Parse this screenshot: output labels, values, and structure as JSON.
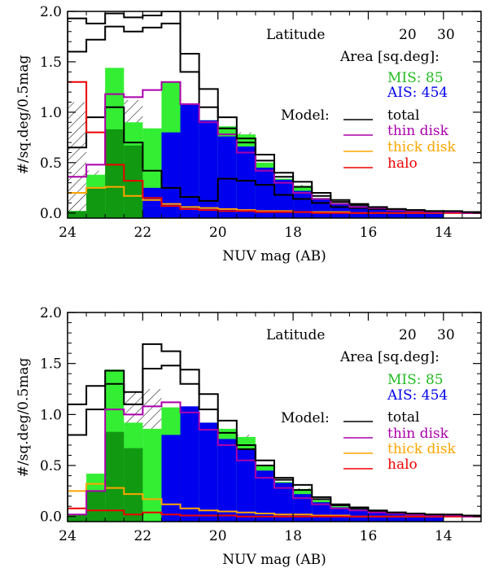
{
  "colors": {
    "mis": "#33ee33",
    "mis_dark": "#119911",
    "ais": "#0000ee",
    "total": "#000000",
    "thin": "#aa00aa",
    "thick": "#ffa500",
    "halo": "#ee0000",
    "hatch": "#000000"
  },
  "labels": {
    "latitude": "Latitude",
    "lat_low": "20",
    "lat_high": "30",
    "area": "Area [sq.deg]:",
    "mis": "MIS:  85",
    "ais": "AIS: 454",
    "model": "Model:",
    "total": "total",
    "thin": "thin disk",
    "thick": "thick disk",
    "halo": "halo"
  },
  "chart_data": [
    {
      "type": "histogram",
      "xlabel": "NUV mag (AB)",
      "ylabel": "#/sq.deg/0.5mag",
      "xlim": [
        24,
        13
      ],
      "ylim": [
        -0.05,
        2.0
      ],
      "xticks": [
        24,
        22,
        20,
        18,
        16,
        14
      ],
      "yticks": [
        0.0,
        0.5,
        1.0,
        1.5,
        2.0
      ],
      "ytick_labels": [
        "0.0",
        "0.5",
        "1.0",
        "1.5",
        "2.0"
      ],
      "bin_edges": [
        24.0,
        23.5,
        23.0,
        22.5,
        22.0,
        21.5,
        21.0,
        20.5,
        20.0,
        19.5,
        19.0,
        18.5,
        18.0,
        17.5,
        17.0,
        16.5,
        16.0,
        15.5,
        15.0,
        14.5,
        14.0,
        13.5,
        13.0
      ],
      "series": [
        {
          "name": "MIS",
          "style": "fill",
          "values": [
            0.02,
            0.38,
            1.44,
            0.9,
            0.84,
            1.3,
            1.06,
            0.92,
            0.86,
            0.78,
            0.5,
            0.34,
            0.27,
            0.15,
            0.1,
            0.08,
            0.06,
            0.03,
            0.02,
            0.02,
            0.0,
            0.0
          ]
        },
        {
          "name": "MIS (darker)",
          "style": "fill",
          "values": [
            0.02,
            0.25,
            0.83,
            0.67,
            0.0,
            0.0,
            0.0,
            0.0,
            0.0,
            0.0,
            0.0,
            0.0,
            0.0,
            0.0,
            0.0,
            0.0,
            0.0,
            0.0,
            0.0,
            0.0,
            0.0,
            0.0
          ]
        },
        {
          "name": "AIS",
          "style": "fill",
          "values": [
            0.0,
            0.0,
            0.0,
            0.0,
            0.25,
            0.8,
            1.08,
            0.92,
            0.76,
            0.66,
            0.45,
            0.33,
            0.22,
            0.14,
            0.09,
            0.07,
            0.05,
            0.03,
            0.02,
            0.01,
            0.0,
            0.0
          ]
        },
        {
          "name": "total",
          "values": [
            1.93,
            1.88,
            1.98,
            1.94,
            1.96,
            2.12,
            1.58,
            1.23,
            0.95,
            0.74,
            0.58,
            0.4,
            0.31,
            0.2,
            0.13,
            0.09,
            0.06,
            0.04,
            0.03,
            0.02,
            0.02,
            0.01
          ]
        },
        {
          "name": "thin disk",
          "values": [
            0.36,
            0.48,
            1.18,
            1.15,
            1.22,
            1.3,
            1.08,
            0.9,
            0.78,
            0.6,
            0.42,
            0.3,
            0.2,
            0.14,
            0.09,
            0.06,
            0.05,
            0.03,
            0.02,
            0.01,
            0.01,
            0.0
          ]
        },
        {
          "name": "thick disk",
          "values": [
            0.2,
            0.25,
            0.26,
            0.17,
            0.13,
            0.09,
            0.06,
            0.05,
            0.04,
            0.03,
            0.02,
            0.02,
            0.01,
            0.01,
            0.01,
            0.0,
            0.0,
            0.0,
            0.0,
            0.0,
            0.0,
            0.0
          ]
        },
        {
          "name": "halo",
          "values": [
            1.3,
            0.8,
            0.48,
            0.32,
            0.15,
            0.07,
            0.04,
            0.03,
            0.02,
            0.02,
            0.01,
            0.01,
            0.01,
            0.0,
            0.0,
            0.0,
            0.0,
            0.0,
            0.0,
            0.0,
            0.0,
            0.0
          ]
        }
      ],
      "extra_total_lines": [
        {
          "values": [
            1.6,
            1.72,
            1.85,
            1.8,
            1.84,
            1.88,
            1.4,
            1.05,
            0.84,
            0.7,
            0.52,
            0.36,
            0.26,
            0.17,
            0.11,
            0.08,
            0.05,
            0.04,
            0.03,
            0.02,
            0.01,
            0.01
          ]
        },
        {
          "values": [
            0.65,
            0.95,
            1.05,
            0.7,
            0.42,
            0.25,
            0.16,
            0.12,
            0.34,
            0.32,
            0.28,
            0.18,
            0.14,
            0.1,
            0.06,
            0.05,
            0.04,
            0.03,
            0.02,
            0.01,
            0.01,
            0.0
          ]
        }
      ],
      "hatched_top": [
        1.1,
        0.42,
        1.44,
        1.12,
        0.84,
        1.3,
        1.06,
        0.92,
        0.86,
        0.8,
        0.5,
        0.34,
        0.28,
        0.15,
        0.1,
        0.08,
        0.06,
        0.03,
        0.02,
        0.02,
        0.0,
        0.0
      ]
    },
    {
      "type": "histogram",
      "xlabel": "NUV mag (AB)",
      "ylabel": "#/sq.deg/0.5mag",
      "xlim": [
        24,
        13
      ],
      "ylim": [
        -0.05,
        2.0
      ],
      "xticks": [
        24,
        22,
        20,
        18,
        16,
        14
      ],
      "yticks": [
        0.0,
        0.5,
        1.0,
        1.5,
        2.0
      ],
      "ytick_labels": [
        "0.0",
        "0.5",
        "1.0",
        "1.5",
        "2.0"
      ],
      "bin_edges": [
        24.0,
        23.5,
        23.0,
        22.5,
        22.0,
        21.5,
        21.0,
        20.5,
        20.0,
        19.5,
        19.0,
        18.5,
        18.0,
        17.5,
        17.0,
        16.5,
        16.0,
        15.5,
        15.0,
        14.5,
        14.0,
        13.5,
        13.0
      ],
      "series": [
        {
          "name": "MIS",
          "style": "fill",
          "values": [
            0.02,
            0.42,
            1.44,
            0.92,
            0.86,
            1.07,
            1.06,
            0.92,
            0.86,
            0.78,
            0.5,
            0.34,
            0.27,
            0.16,
            0.1,
            0.08,
            0.06,
            0.03,
            0.02,
            0.02,
            0.0,
            0.0
          ]
        },
        {
          "name": "MIS (darker)",
          "style": "fill",
          "values": [
            0.02,
            0.25,
            0.83,
            0.67,
            0.0,
            0.0,
            0.0,
            0.0,
            0.0,
            0.0,
            0.0,
            0.0,
            0.0,
            0.0,
            0.0,
            0.0,
            0.0,
            0.0,
            0.0,
            0.0,
            0.0,
            0.0
          ]
        },
        {
          "name": "AIS",
          "style": "fill",
          "values": [
            0.0,
            0.0,
            0.0,
            0.0,
            0.0,
            0.8,
            1.08,
            0.92,
            0.76,
            0.66,
            0.45,
            0.33,
            0.22,
            0.14,
            0.09,
            0.07,
            0.05,
            0.03,
            0.02,
            0.01,
            0.0,
            0.0
          ]
        },
        {
          "name": "total",
          "values": [
            1.1,
            1.28,
            1.43,
            1.22,
            1.69,
            1.62,
            1.44,
            1.2,
            0.94,
            0.7,
            0.55,
            0.38,
            0.31,
            0.19,
            0.12,
            0.09,
            0.06,
            0.04,
            0.03,
            0.02,
            0.02,
            0.01
          ]
        },
        {
          "name": "thin disk",
          "values": [
            0.02,
            0.25,
            1.05,
            1.0,
            1.08,
            1.12,
            1.02,
            0.85,
            0.7,
            0.55,
            0.38,
            0.28,
            0.18,
            0.12,
            0.08,
            0.06,
            0.04,
            0.03,
            0.02,
            0.01,
            0.01,
            0.0
          ]
        },
        {
          "name": "thick disk",
          "values": [
            0.25,
            0.32,
            0.28,
            0.22,
            0.17,
            0.12,
            0.08,
            0.06,
            0.05,
            0.04,
            0.03,
            0.02,
            0.02,
            0.01,
            0.01,
            0.0,
            0.0,
            0.0,
            0.0,
            0.0,
            0.0,
            0.0
          ]
        },
        {
          "name": "halo",
          "values": [
            0.08,
            0.06,
            0.06,
            0.02,
            0.04,
            0.02,
            0.01,
            0.01,
            0.01,
            0.0,
            0.0,
            0.0,
            0.0,
            0.0,
            0.0,
            0.0,
            0.0,
            0.0,
            0.0,
            0.0,
            0.0,
            0.0
          ]
        }
      ],
      "extra_total_lines": [
        {
          "values": [
            0.8,
            1.05,
            1.3,
            1.1,
            1.45,
            1.48,
            1.3,
            1.05,
            0.82,
            0.66,
            0.5,
            0.36,
            0.26,
            0.17,
            0.11,
            0.08,
            0.05,
            0.04,
            0.03,
            0.02,
            0.01,
            0.01
          ]
        }
      ],
      "hatched_top": [
        0.02,
        0.42,
        1.44,
        1.22,
        1.25,
        1.07,
        1.06,
        0.92,
        0.86,
        0.8,
        0.5,
        0.34,
        0.28,
        0.16,
        0.1,
        0.08,
        0.06,
        0.03,
        0.02,
        0.02,
        0.0,
        0.0
      ]
    }
  ]
}
